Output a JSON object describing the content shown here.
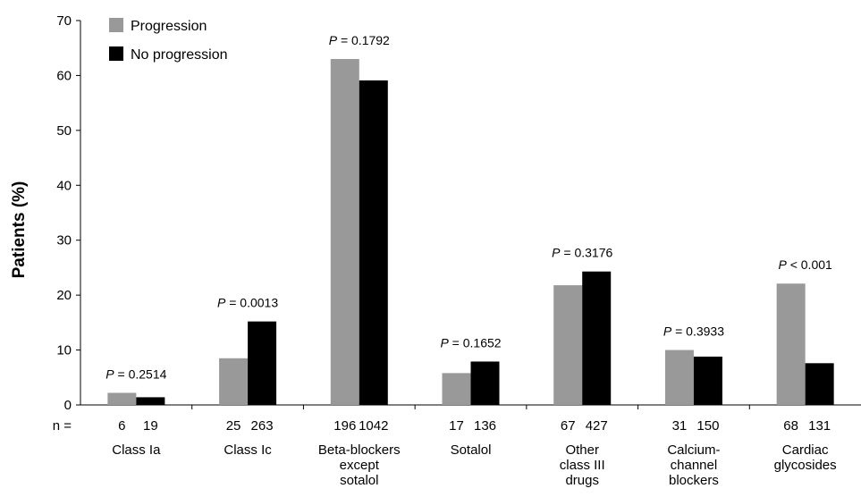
{
  "chart_data": {
    "type": "bar",
    "ylabel": "Patients (%)",
    "ylim": [
      0,
      70
    ],
    "yticks": [
      0,
      10,
      20,
      30,
      40,
      50,
      60,
      70
    ],
    "n_prefix": "n =",
    "categories": [
      [
        "Class Ia"
      ],
      [
        "Class Ic"
      ],
      [
        "Beta-blockers",
        "except",
        "sotalol"
      ],
      [
        "Sotalol"
      ],
      [
        "Other",
        "class III",
        "drugs"
      ],
      [
        "Calcium-",
        "channel",
        "blockers"
      ],
      [
        "Cardiac",
        "glycosides"
      ]
    ],
    "n_values": [
      [
        "6",
        "19"
      ],
      [
        "25",
        "263"
      ],
      [
        "196",
        "1042"
      ],
      [
        "17",
        "136"
      ],
      [
        "67",
        "427"
      ],
      [
        "31",
        "150"
      ],
      [
        "68",
        "131"
      ]
    ],
    "p_values": [
      {
        "label": "P",
        "rest": " = 0.2514"
      },
      {
        "label": "P",
        "rest": " = 0.0013"
      },
      {
        "label": "P",
        "rest": " = 0.1792"
      },
      {
        "label": "P",
        "rest": " = 0.1652"
      },
      {
        "label": "P",
        "rest": " = 0.3176"
      },
      {
        "label": "P",
        "rest": " = 0.3933"
      },
      {
        "label": "P",
        "rest": " < 0.001"
      }
    ],
    "series": [
      {
        "name": "Progression",
        "color": "#999999",
        "values": [
          2.2,
          8.5,
          63.0,
          5.8,
          21.8,
          10.0,
          22.1
        ]
      },
      {
        "name": "No progression",
        "color": "#000000",
        "values": [
          1.4,
          15.2,
          59.1,
          7.9,
          24.3,
          8.8,
          7.6
        ]
      }
    ],
    "legend_position": "top-left"
  }
}
